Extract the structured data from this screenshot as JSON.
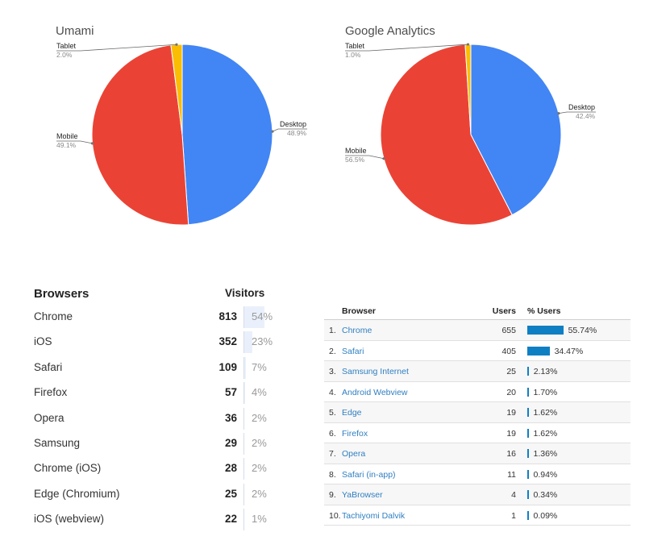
{
  "pies": [
    {
      "title": "Umami",
      "slices": [
        {
          "label": "Desktop",
          "pct_label": "48.9%",
          "value": 48.9,
          "color": "#4285f4"
        },
        {
          "label": "Mobile",
          "pct_label": "49.1%",
          "value": 49.1,
          "color": "#ea4335"
        },
        {
          "label": "Tablet",
          "pct_label": "2.0%",
          "value": 2.0,
          "color": "#fbbc04"
        }
      ]
    },
    {
      "title": "Google Analytics",
      "slices": [
        {
          "label": "Desktop",
          "pct_label": "42.4%",
          "value": 42.4,
          "color": "#4285f4"
        },
        {
          "label": "Mobile",
          "pct_label": "56.5%",
          "value": 56.5,
          "color": "#ea4335"
        },
        {
          "label": "Tablet",
          "pct_label": "1.0%",
          "value": 1.0,
          "color": "#fbbc04"
        }
      ]
    }
  ],
  "umami_table": {
    "header_name": "Browsers",
    "header_value": "Visitors",
    "rows": [
      {
        "name": "Chrome",
        "count": "813",
        "pct": "54%",
        "share": 54
      },
      {
        "name": "iOS",
        "count": "352",
        "pct": "23%",
        "share": 23
      },
      {
        "name": "Safari",
        "count": "109",
        "pct": "7%",
        "share": 7
      },
      {
        "name": "Firefox",
        "count": "57",
        "pct": "4%",
        "share": 4
      },
      {
        "name": "Opera",
        "count": "36",
        "pct": "2%",
        "share": 2
      },
      {
        "name": "Samsung",
        "count": "29",
        "pct": "2%",
        "share": 2
      },
      {
        "name": "Chrome (iOS)",
        "count": "28",
        "pct": "2%",
        "share": 2
      },
      {
        "name": "Edge (Chromium)",
        "count": "25",
        "pct": "2%",
        "share": 2
      },
      {
        "name": "iOS (webview)",
        "count": "22",
        "pct": "1%",
        "share": 1
      }
    ]
  },
  "ga_table": {
    "header_browser": "Browser",
    "header_users": "Users",
    "header_pct": "% Users",
    "rows": [
      {
        "rank": "1.",
        "name": "Chrome",
        "users": "655",
        "pct": "55.74%",
        "share": 55.74
      },
      {
        "rank": "2.",
        "name": "Safari",
        "users": "405",
        "pct": "34.47%",
        "share": 34.47
      },
      {
        "rank": "3.",
        "name": "Samsung Internet",
        "users": "25",
        "pct": "2.13%",
        "share": 2.13
      },
      {
        "rank": "4.",
        "name": "Android Webview",
        "users": "20",
        "pct": "1.70%",
        "share": 1.7
      },
      {
        "rank": "5.",
        "name": "Edge",
        "users": "19",
        "pct": "1.62%",
        "share": 1.62
      },
      {
        "rank": "6.",
        "name": "Firefox",
        "users": "19",
        "pct": "1.62%",
        "share": 1.62
      },
      {
        "rank": "7.",
        "name": "Opera",
        "users": "16",
        "pct": "1.36%",
        "share": 1.36
      },
      {
        "rank": "8.",
        "name": "Safari (in-app)",
        "users": "11",
        "pct": "0.94%",
        "share": 0.94
      },
      {
        "rank": "9.",
        "name": "YaBrowser",
        "users": "4",
        "pct": "0.34%",
        "share": 0.34
      },
      {
        "rank": "10.",
        "name": "Tachiyomi Dalvik",
        "users": "1",
        "pct": "0.09%",
        "share": 0.09
      }
    ]
  },
  "chart_data": [
    {
      "type": "pie",
      "title": "Umami",
      "categories": [
        "Desktop",
        "Mobile",
        "Tablet"
      ],
      "values": [
        48.9,
        49.1,
        2.0
      ]
    },
    {
      "type": "pie",
      "title": "Google Analytics",
      "categories": [
        "Desktop",
        "Mobile",
        "Tablet"
      ],
      "values": [
        42.4,
        56.5,
        1.0
      ]
    },
    {
      "type": "table",
      "columns": [
        "Browsers",
        "Visitors"
      ],
      "rows": [
        [
          "Chrome",
          813,
          "54%"
        ],
        [
          "iOS",
          352,
          "23%"
        ],
        [
          "Safari",
          109,
          "7%"
        ],
        [
          "Firefox",
          57,
          "4%"
        ],
        [
          "Opera",
          36,
          "2%"
        ],
        [
          "Samsung",
          29,
          "2%"
        ],
        [
          "Chrome (iOS)",
          28,
          "2%"
        ],
        [
          "Edge (Chromium)",
          25,
          "2%"
        ],
        [
          "iOS (webview)",
          22,
          "1%"
        ]
      ]
    },
    {
      "type": "table",
      "columns": [
        "Browser",
        "Users",
        "% Users"
      ],
      "rows": [
        [
          "Chrome",
          655,
          "55.74%"
        ],
        [
          "Safari",
          405,
          "34.47%"
        ],
        [
          "Samsung Internet",
          25,
          "2.13%"
        ],
        [
          "Android Webview",
          20,
          "1.70%"
        ],
        [
          "Edge",
          19,
          "1.62%"
        ],
        [
          "Firefox",
          19,
          "1.62%"
        ],
        [
          "Opera",
          16,
          "1.36%"
        ],
        [
          "Safari (in-app)",
          11,
          "0.94%"
        ],
        [
          "YaBrowser",
          4,
          "0.34%"
        ],
        [
          "Tachiyomi Dalvik",
          1,
          "0.09%"
        ]
      ]
    }
  ]
}
